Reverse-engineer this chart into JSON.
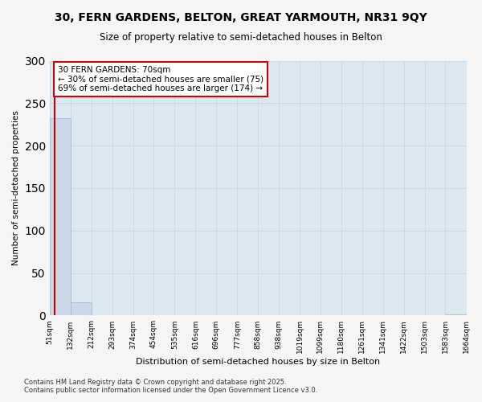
{
  "title_line1": "30, FERN GARDENS, BELTON, GREAT YARMOUTH, NR31 9QY",
  "title_line2": "Size of property relative to semi-detached houses in Belton",
  "xlabel": "Distribution of semi-detached houses by size in Belton",
  "ylabel": "Number of semi-detached properties",
  "annotation_line1": "30 FERN GARDENS: 70sqm",
  "annotation_line2": "← 30% of semi-detached houses are smaller (75)",
  "annotation_line3": "69% of semi-detached houses are larger (174) →",
  "property_size": 70,
  "bin_edges": [
    51,
    132,
    212,
    293,
    374,
    454,
    535,
    616,
    696,
    777,
    858,
    938,
    1019,
    1099,
    1180,
    1261,
    1341,
    1422,
    1503,
    1583,
    1664
  ],
  "bin_labels": [
    "51sqm",
    "132sqm",
    "212sqm",
    "293sqm",
    "374sqm",
    "454sqm",
    "535sqm",
    "616sqm",
    "696sqm",
    "777sqm",
    "858sqm",
    "938sqm",
    "1019sqm",
    "1099sqm",
    "1180sqm",
    "1261sqm",
    "1341sqm",
    "1422sqm",
    "1503sqm",
    "1583sqm",
    "1664sqm"
  ],
  "bar_heights": [
    232,
    16,
    0,
    0,
    0,
    0,
    0,
    0,
    0,
    0,
    0,
    0,
    0,
    0,
    0,
    0,
    0,
    0,
    0,
    1
  ],
  "bar_color": "#c8d8e8",
  "bar_edge_color": "#a0b8cc",
  "red_line_color": "#cc0000",
  "annotation_box_color": "#ffffff",
  "annotation_box_edge": "#cc0000",
  "grid_color": "#c8d8e8",
  "background_color": "#dce8f0",
  "fig_background": "#f5f5f5",
  "footer_line1": "Contains HM Land Registry data © Crown copyright and database right 2025.",
  "footer_line2": "Contains public sector information licensed under the Open Government Licence v3.0.",
  "ylim": [
    0,
    300
  ],
  "yticks": [
    0,
    50,
    100,
    150,
    200,
    250,
    300
  ]
}
